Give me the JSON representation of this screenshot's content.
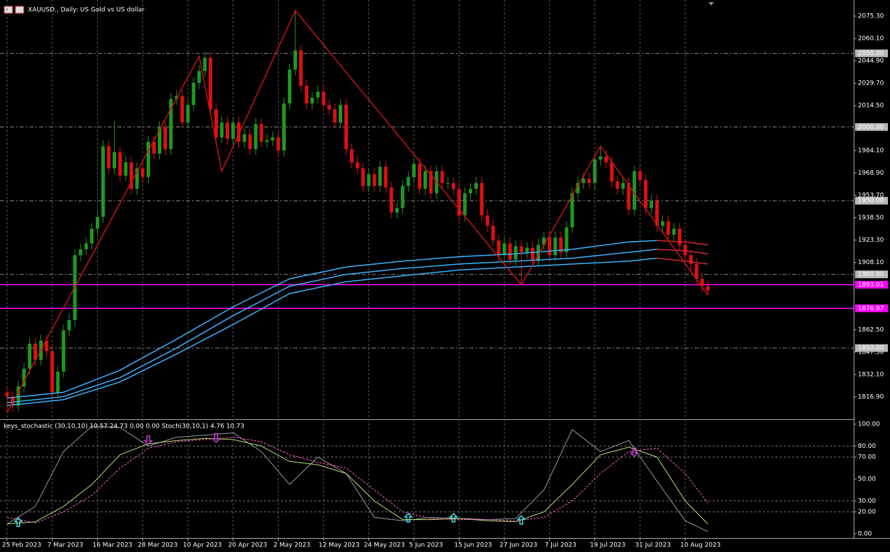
{
  "chart_data": [
    {
      "type": "candlestick",
      "title": "XAUUSD., Daily:  US Gold vs US dollar",
      "up_color": "#1e9a1e",
      "down_color": "#e01010",
      "xlim": [
        -1.24,
        149.8
      ],
      "ylim": [
        1801.7,
        2086.2
      ],
      "xticks": [
        {
          "value": 0,
          "label": "25 Feb 2023"
        },
        {
          "value": 8,
          "label": "7 Mar 2023"
        },
        {
          "value": 16,
          "label": "16 Mar 2023"
        },
        {
          "value": 24,
          "label": "28 Mar 2023"
        },
        {
          "value": 32,
          "label": "10 Apr 2023"
        },
        {
          "value": 40,
          "label": "20 Apr 2023"
        },
        {
          "value": 48,
          "label": "2 May 2023"
        },
        {
          "value": 56,
          "label": "12 May 2023"
        },
        {
          "value": 64,
          "label": "24 May 2023"
        },
        {
          "value": 72,
          "label": "5 Jun 2023"
        },
        {
          "value": 80,
          "label": "15 Jun 2023"
        },
        {
          "value": 88,
          "label": "27 Jun 2023"
        },
        {
          "value": 96,
          "label": "7 Jul 2023"
        },
        {
          "value": 104,
          "label": "19 Jul 2023"
        },
        {
          "value": 112,
          "label": "31 Jul 2023"
        },
        {
          "value": 120,
          "label": "10 Aug 2023"
        }
      ],
      "yticks": [
        {
          "value": 2075.3,
          "label": "2075.30"
        },
        {
          "value": 2060.1,
          "label": "2060.10"
        },
        {
          "value": 2044.9,
          "label": "2044.90"
        },
        {
          "value": 2029.7,
          "label": "2029.70"
        },
        {
          "value": 2014.5,
          "label": "2014.50"
        },
        {
          "value": 1984.1,
          "label": "1984.10"
        },
        {
          "value": 1968.9,
          "label": "1968.90"
        },
        {
          "value": 1953.7,
          "label": "1953.70"
        },
        {
          "value": 1938.5,
          "label": "1938.50"
        },
        {
          "value": 1923.3,
          "label": "1923.30"
        },
        {
          "value": 1908.1,
          "label": "1908.10"
        },
        {
          "value": 1862.5,
          "label": "1862.50"
        },
        {
          "value": 1847.3,
          "label": "1847.30"
        },
        {
          "value": 1832.1,
          "label": "1832.10"
        },
        {
          "value": 1816.9,
          "label": "1816.90"
        }
      ],
      "levels": [
        {
          "value": 2050,
          "label": "2050.00"
        },
        {
          "value": 2000,
          "label": "2000.00"
        },
        {
          "value": 1950,
          "label": "1950.00"
        },
        {
          "value": 1900,
          "label": "1900.00"
        },
        {
          "value": 1850,
          "label": "1850.00"
        }
      ],
      "lines": [
        {
          "value": 1893.01,
          "label": "1893.01"
        },
        {
          "value": 1876.97,
          "label": "1876.97"
        }
      ],
      "lines_color": "#ff00ff",
      "open": [
        1820,
        1817,
        1811,
        1824,
        1836,
        1853,
        1842,
        1855,
        1848,
        1820,
        1834,
        1862,
        1869,
        1913,
        1917,
        1921,
        1931,
        1939,
        1987,
        1972,
        1983,
        1967,
        1976,
        1958,
        1972,
        1966,
        1990,
        1982,
        2000,
        1985,
        2019,
        2021,
        2003,
        2015,
        2030,
        2038,
        2047,
        2012,
        1993,
        2003,
        1992,
        2003,
        1990,
        1995,
        1985,
        2002,
        1990,
        1991,
        1993,
        1984,
        2016,
        2039,
        2052,
        2028,
        2016,
        2020,
        2024,
        2015,
        2012,
        2003,
        2015,
        1985,
        1976,
        1972,
        1960,
        1968,
        1960,
        1973,
        1959,
        1942,
        1945,
        1960,
        1966,
        1975,
        1958,
        1970,
        1955,
        1970,
        1962,
        1962,
        1958,
        1940,
        1955,
        1958,
        1962,
        1940,
        1933,
        1923,
        1913,
        1921,
        1910,
        1919,
        1915,
        1918,
        1909,
        1920,
        1925,
        1913,
        1925,
        1915,
        1932,
        1955,
        1962,
        1965,
        1962,
        1978,
        1980,
        1976,
        1963,
        1958,
        1962,
        1944,
        1970,
        1964,
        1945,
        1950,
        1933,
        1936,
        1927,
        1931,
        1920,
        1913,
        1907,
        1897,
        1892
      ],
      "high": [
        1824,
        1821,
        1828,
        1840,
        1857,
        1857,
        1859,
        1859,
        1852,
        1838,
        1866,
        1873,
        1917,
        1921,
        1925,
        1935,
        1943,
        1991,
        1991,
        2004,
        1987,
        1980,
        1980,
        1976,
        1976,
        1994,
        1994,
        2004,
        2004,
        2023,
        2025,
        2025,
        2019,
        2034,
        2042,
        2051,
        2051,
        2016,
        2007,
        2007,
        2007,
        2007,
        1999,
        1999,
        2006,
        2006,
        1995,
        1997,
        1997,
        2020,
        2043,
        2079,
        2056,
        2032,
        2024,
        2028,
        2028,
        2019,
        2016,
        2019,
        2019,
        1989,
        1980,
        1976,
        1972,
        1972,
        1977,
        1977,
        1963,
        1949,
        1964,
        1970,
        1979,
        1979,
        1974,
        1974,
        1974,
        1974,
        1966,
        1966,
        1962,
        1959,
        1962,
        1966,
        1966,
        1944,
        1937,
        1927,
        1925,
        1925,
        1923,
        1923,
        1922,
        1922,
        1924,
        1929,
        1929,
        1929,
        1929,
        1936,
        1959,
        1966,
        1969,
        1969,
        1982,
        1987,
        1984,
        1980,
        1967,
        1966,
        1966,
        1974,
        1974,
        1968,
        1954,
        1954,
        1940,
        1940,
        1935,
        1935,
        1924,
        1917,
        1911,
        1901,
        1896
      ],
      "low": [
        1806,
        1807,
        1807,
        1820,
        1832,
        1838,
        1838,
        1844,
        1816,
        1816,
        1830,
        1858,
        1865,
        1909,
        1913,
        1917,
        1927,
        1935,
        1968,
        1968,
        1963,
        1963,
        1954,
        1954,
        1962,
        1962,
        1978,
        1978,
        1981,
        1981,
        2015,
        1999,
        1999,
        2011,
        2026,
        2034,
        2008,
        1989,
        1989,
        1988,
        1988,
        1986,
        1986,
        1981,
        1981,
        1986,
        1986,
        1987,
        1980,
        1980,
        2012,
        2035,
        2024,
        2012,
        2012,
        2016,
        2011,
        2008,
        1999,
        1999,
        1981,
        1972,
        1968,
        1956,
        1956,
        1956,
        1956,
        1955,
        1938,
        1938,
        1941,
        1956,
        1962,
        1954,
        1954,
        1951,
        1951,
        1958,
        1958,
        1954,
        1936,
        1936,
        1951,
        1954,
        1936,
        1929,
        1919,
        1909,
        1909,
        1906,
        1906,
        1893,
        1911,
        1905,
        1905,
        1916,
        1909,
        1909,
        1911,
        1911,
        1928,
        1951,
        1958,
        1958,
        1958,
        1974,
        1972,
        1959,
        1954,
        1954,
        1940,
        1940,
        1960,
        1941,
        1941,
        1929,
        1929,
        1923,
        1923,
        1916,
        1909,
        1903,
        1893,
        1888,
        1886
      ],
      "close": [
        1817,
        1811,
        1824,
        1836,
        1853,
        1842,
        1855,
        1848,
        1820,
        1834,
        1862,
        1869,
        1913,
        1917,
        1921,
        1931,
        1939,
        1987,
        1972,
        1983,
        1967,
        1976,
        1958,
        1972,
        1966,
        1990,
        1982,
        2000,
        1985,
        2019,
        2021,
        2003,
        2015,
        2030,
        2038,
        2047,
        2012,
        1993,
        2003,
        1992,
        2003,
        1990,
        1995,
        1985,
        2002,
        1990,
        1991,
        1993,
        1984,
        2016,
        2039,
        2052,
        2028,
        2016,
        2020,
        2024,
        2015,
        2012,
        2003,
        2015,
        1985,
        1976,
        1972,
        1960,
        1968,
        1960,
        1973,
        1959,
        1942,
        1945,
        1960,
        1966,
        1975,
        1958,
        1970,
        1955,
        1970,
        1962,
        1962,
        1958,
        1940,
        1955,
        1958,
        1962,
        1940,
        1933,
        1923,
        1913,
        1921,
        1910,
        1919,
        1915,
        1918,
        1909,
        1920,
        1925,
        1913,
        1925,
        1915,
        1932,
        1955,
        1962,
        1965,
        1962,
        1978,
        1980,
        1976,
        1963,
        1958,
        1962,
        1944,
        1970,
        1964,
        1945,
        1950,
        1933,
        1936,
        1927,
        1931,
        1920,
        1913,
        1907,
        1897,
        1892,
        1889
      ],
      "overlays": [
        {
          "color": "#3cb4ff",
          "x": [
            0,
            10,
            20,
            30,
            40,
            50,
            60,
            70,
            80,
            90,
            100,
            110,
            115
          ],
          "values": [
            1816,
            1820,
            1835,
            1856,
            1878,
            1897,
            1905,
            1909,
            1912,
            1914,
            1917,
            1922,
            1923
          ]
        },
        {
          "color": "#3cb4ff",
          "x": [
            0,
            10,
            20,
            30,
            40,
            50,
            60,
            70,
            80,
            90,
            100,
            110,
            115
          ],
          "values": [
            1813,
            1817,
            1830,
            1850,
            1872,
            1892,
            1900,
            1904,
            1907,
            1909,
            1911,
            1915,
            1917
          ]
        },
        {
          "color": "#3cb4ff",
          "x": [
            0,
            10,
            20,
            30,
            40,
            50,
            60,
            70,
            80,
            90,
            100,
            110,
            115
          ],
          "values": [
            1811,
            1815,
            1827,
            1846,
            1866,
            1887,
            1895,
            1899,
            1903,
            1905,
            1907,
            1909,
            1911
          ]
        },
        {
          "color": "#d42a2a",
          "x": [
            115,
            120,
            124
          ],
          "values": [
            1923,
            1922,
            1920
          ]
        },
        {
          "color": "#d42a2a",
          "x": [
            115,
            120,
            124
          ],
          "values": [
            1917,
            1916,
            1914
          ]
        },
        {
          "color": "#d42a2a",
          "x": [
            115,
            120,
            124
          ],
          "values": [
            1911,
            1909,
            1907
          ]
        },
        {
          "color": "#c81414",
          "x": [
            0,
            34,
            38,
            51,
            91,
            105,
            124
          ],
          "values": [
            1806,
            2048,
            1970,
            2079,
            1893,
            1987,
            1886
          ]
        }
      ]
    },
    {
      "type": "line",
      "title": "keys_stochastic (30,10,10) 10.57 24.73 0.00 0.00 Stoch(30,10,1) 4.76 10.73",
      "ylim": [
        -3.8,
        103.8
      ],
      "yticks": [
        {
          "value": 100,
          "label": "100.00"
        },
        {
          "value": 80,
          "label": "80.00"
        },
        {
          "value": 70,
          "label": "70.00"
        },
        {
          "value": 50,
          "label": "50.00"
        },
        {
          "value": 30,
          "label": "30.00"
        },
        {
          "value": 20,
          "label": "20.00"
        },
        {
          "value": 0,
          "label": "0.00"
        }
      ],
      "level_lines": [
        80,
        70,
        30,
        20
      ],
      "x": [
        0,
        5,
        10,
        15,
        20,
        25,
        30,
        35,
        40,
        45,
        50,
        55,
        60,
        65,
        70,
        75,
        80,
        85,
        90,
        95,
        100,
        105,
        110,
        115,
        120,
        124
      ],
      "series": [
        {
          "color": "#9a9aa8",
          "dashed": false,
          "values": [
            9,
            25,
            75,
            98,
            97,
            80,
            88,
            90,
            92,
            75,
            45,
            70,
            55,
            15,
            12,
            15,
            14,
            13,
            14,
            40,
            95,
            75,
            85,
            48,
            12,
            2
          ]
        },
        {
          "color": "#b8e070",
          "dashed": false,
          "values": [
            9,
            11,
            25,
            45,
            72,
            82,
            85,
            87,
            86,
            80,
            66,
            63,
            55,
            30,
            13,
            13,
            14,
            12,
            11,
            20,
            45,
            72,
            79,
            70,
            30,
            9
          ]
        },
        {
          "color": "#ff66cc",
          "dashed": true,
          "values": [
            15,
            10,
            20,
            35,
            60,
            78,
            84,
            86,
            88,
            84,
            72,
            65,
            60,
            40,
            20,
            14,
            13,
            13,
            12,
            15,
            30,
            55,
            75,
            78,
            55,
            28
          ]
        }
      ],
      "up_signals": {
        "color": "#40e0e0",
        "x": [
          2,
          71,
          79,
          91
        ],
        "values": [
          10,
          14,
          14,
          12
        ]
      },
      "down_signals": {
        "color": "#d040d0",
        "x": [
          25,
          37,
          111
        ],
        "values": [
          86,
          88,
          75
        ]
      }
    }
  ]
}
